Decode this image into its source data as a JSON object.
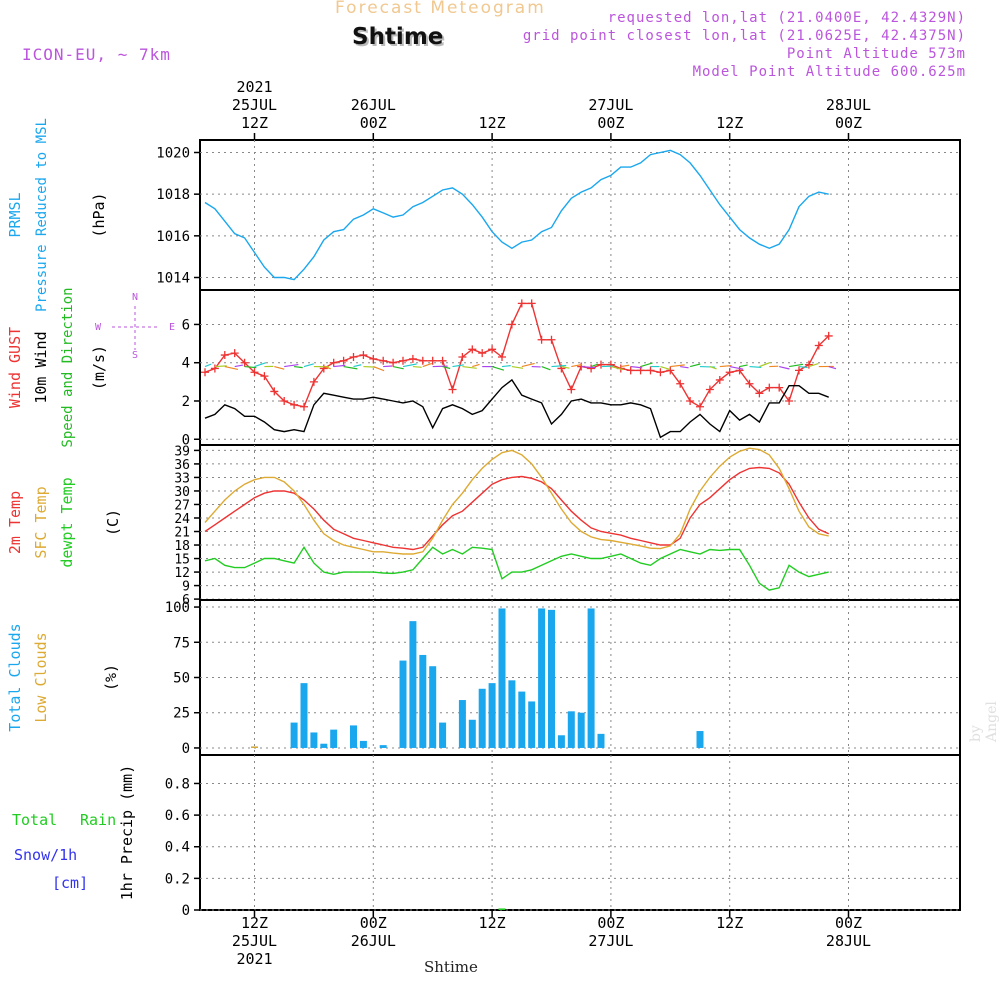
{
  "header": {
    "forecast_title": "Forecast Meteogram",
    "location_name": "Shtime",
    "model": "ICON-EU, ~ 7km",
    "requested": "requested lon,lat (21.0400E, 42.4329N)",
    "grid_point": "grid point closest lon,lat (21.0625E, 42.4375N)",
    "point_altitude": "Point Altitude 573m",
    "model_altitude": "Model Point Altitude 600.625m",
    "watermark": "by Angel",
    "x_axis_label": "Shtime"
  },
  "colors": {
    "pressure": "#1aa7ee",
    "gust": "#ee3333",
    "wind": "#000000",
    "direction": "#22bb22",
    "temp2m": "#ee3333",
    "sfc": "#ddaa33",
    "dewpt": "#22cc22",
    "clouds_total": "#1aa7ee",
    "clouds_low": "#ddaa33",
    "rain": "#22cc22",
    "snow": "#3333ee",
    "header_orange": "#f0c890",
    "header_purple": "#bb55dd"
  },
  "chart_data": {
    "type": "line",
    "time_start": "2021-07-25 07Z",
    "time_step_hours": 1,
    "time_count": 64,
    "top_axis": [
      {
        "label": [
          "2021",
          "25JUL",
          "12Z"
        ],
        "hour": 5
      },
      {
        "label": [
          "26JUL",
          "00Z"
        ],
        "hour": 17
      },
      {
        "label": [
          "12Z"
        ],
        "hour": 29
      },
      {
        "label": [
          "27JUL",
          "00Z"
        ],
        "hour": 41
      },
      {
        "label": [
          "12Z"
        ],
        "hour": 53
      },
      {
        "label": [
          "28JUL",
          "00Z"
        ],
        "hour": 65
      }
    ],
    "bottom_axis": [
      {
        "label": [
          "12Z",
          "25JUL",
          "2021"
        ],
        "hour": 5
      },
      {
        "label": [
          "00Z",
          "26JUL"
        ],
        "hour": 17
      },
      {
        "label": [
          "12Z"
        ],
        "hour": 29
      },
      {
        "label": [
          "00Z",
          "27JUL"
        ],
        "hour": 41
      },
      {
        "label": [
          "12Z"
        ],
        "hour": 53
      },
      {
        "label": [
          "00Z",
          "28JUL"
        ],
        "hour": 65
      }
    ],
    "panels": [
      {
        "id": "pressure",
        "type": "line",
        "ylim": [
          1013.4,
          1020.6
        ],
        "yticks": [
          1014,
          1016,
          1018,
          1020
        ],
        "ylabels": [
          {
            "text": "PRMSL",
            "color": "#1aa7ee"
          },
          {
            "text": "Pressure Reduced to MSL",
            "color": "#1aa7ee"
          },
          {
            "text": "(hPa)",
            "color": "#000000"
          }
        ],
        "series": [
          {
            "name": "PRMSL",
            "color": "#1aa7ee",
            "values": [
              1017.6,
              1017.3,
              1016.7,
              1016.1,
              1015.9,
              1015.2,
              1014.5,
              1014.0,
              1014.0,
              1013.9,
              1014.4,
              1015.0,
              1015.8,
              1016.2,
              1016.3,
              1016.8,
              1017.0,
              1017.3,
              1017.1,
              1016.9,
              1017.0,
              1017.4,
              1017.6,
              1017.9,
              1018.2,
              1018.3,
              1018.0,
              1017.5,
              1016.9,
              1016.2,
              1015.7,
              1015.4,
              1015.7,
              1015.8,
              1016.2,
              1016.4,
              1017.2,
              1017.8,
              1018.1,
              1018.3,
              1018.7,
              1018.9,
              1019.3,
              1019.3,
              1019.5,
              1019.9,
              1020.0,
              1020.1,
              1019.9,
              1019.5,
              1018.9,
              1018.2,
              1017.5,
              1016.9,
              1016.3,
              1015.9,
              1015.6,
              1015.4,
              1015.6,
              1016.3,
              1017.4,
              1017.9,
              1018.1,
              1018.0
            ]
          }
        ]
      },
      {
        "id": "wind",
        "type": "line",
        "ylim": [
          -0.3,
          7.8
        ],
        "yticks": [
          0,
          2,
          4,
          6
        ],
        "ylabels": [
          {
            "text": "Wind GUST",
            "color": "#ee3333"
          },
          {
            "text": "10m Wind",
            "color": "#000000"
          },
          {
            "text": "Speed and Direction",
            "color": "#22bb22"
          },
          {
            "text": "(m/s)",
            "color": "#000000"
          }
        ],
        "compass": {
          "n": "N",
          "s": "S",
          "w": "W",
          "e": "E"
        },
        "series": [
          {
            "name": "Wind GUST",
            "color": "#ee3333",
            "values": [
              3.5,
              3.7,
              4.4,
              4.5,
              4.0,
              3.5,
              3.3,
              2.5,
              2.0,
              1.8,
              1.7,
              3.0,
              3.7,
              4.0,
              4.1,
              4.3,
              4.4,
              4.2,
              4.1,
              4.0,
              4.1,
              4.2,
              4.1,
              4.1,
              4.1,
              2.6,
              4.3,
              4.7,
              4.5,
              4.7,
              4.3,
              6.0,
              7.1,
              7.1,
              5.2,
              5.2,
              3.7,
              2.6,
              3.8,
              3.7,
              3.9,
              3.9,
              3.7,
              3.6,
              3.6,
              3.6,
              3.5,
              3.6,
              2.9,
              2.0,
              1.7,
              2.6,
              3.1,
              3.5,
              3.6,
              2.9,
              2.4,
              2.7,
              2.7,
              2.0,
              3.6,
              3.9,
              4.9,
              5.4
            ]
          },
          {
            "name": "10m Wind",
            "color": "#000000",
            "values": [
              1.1,
              1.3,
              1.8,
              1.6,
              1.2,
              1.2,
              0.9,
              0.5,
              0.4,
              0.5,
              0.4,
              1.8,
              2.4,
              2.3,
              2.2,
              2.1,
              2.1,
              2.2,
              2.1,
              2.0,
              1.9,
              2.0,
              1.7,
              0.6,
              1.6,
              1.8,
              1.6,
              1.3,
              1.5,
              2.1,
              2.7,
              3.1,
              2.3,
              2.1,
              1.9,
              0.8,
              1.3,
              2.0,
              2.1,
              1.9,
              1.9,
              1.8,
              1.8,
              1.9,
              1.8,
              1.6,
              0.1,
              0.4,
              0.4,
              0.9,
              1.3,
              0.8,
              0.4,
              1.5,
              1.0,
              1.3,
              0.9,
              1.9,
              1.9,
              2.8,
              2.8,
              2.4,
              2.4,
              2.2
            ]
          }
        ]
      },
      {
        "id": "temp",
        "type": "line",
        "ylim": [
          5.8,
          40.2
        ],
        "yticks": [
          6,
          9,
          12,
          15,
          18,
          21,
          24,
          27,
          30,
          33,
          36,
          39
        ],
        "ylabels": [
          {
            "text": "2m Temp",
            "color": "#ee3333"
          },
          {
            "text": "SFC Temp",
            "color": "#ddaa33"
          },
          {
            "text": "dewpt Temp",
            "color": "#22cc22"
          },
          {
            "text": "(C)",
            "color": "#000000"
          }
        ],
        "series": [
          {
            "name": "2m Temp",
            "color": "#ee3333",
            "values": [
              21.0,
              22.5,
              24.0,
              25.5,
              27.0,
              28.5,
              29.5,
              30.0,
              30.0,
              29.5,
              28.0,
              26.0,
              23.5,
              21.5,
              20.5,
              19.5,
              19.0,
              18.5,
              18.0,
              17.5,
              17.3,
              17.0,
              17.5,
              20.0,
              22.5,
              24.5,
              25.5,
              27.5,
              29.5,
              31.5,
              32.5,
              33.0,
              33.2,
              32.8,
              32.0,
              30.5,
              28.0,
              25.5,
              23.5,
              21.8,
              21.0,
              20.6,
              20.2,
              19.5,
              19.0,
              18.5,
              18.0,
              18.0,
              19.5,
              24.0,
              27.0,
              28.5,
              30.5,
              32.5,
              34.0,
              35.0,
              35.2,
              35.0,
              34.0,
              31.5,
              27.5,
              24.0,
              21.5,
              20.5
            ]
          },
          {
            "name": "SFC Temp",
            "color": "#ddaa33",
            "values": [
              23.0,
              25.5,
              28.0,
              30.0,
              31.5,
              32.5,
              33.0,
              33.0,
              32.0,
              30.0,
              27.0,
              23.5,
              20.5,
              19.0,
              18.0,
              17.5,
              17.0,
              16.5,
              16.5,
              16.2,
              16.0,
              16.0,
              16.5,
              19.5,
              23.5,
              27.0,
              29.5,
              32.5,
              35.0,
              37.0,
              38.5,
              39.0,
              38.0,
              36.0,
              33.0,
              29.5,
              26.0,
              23.0,
              21.0,
              19.8,
              19.2,
              19.0,
              18.6,
              18.2,
              17.8,
              17.3,
              17.2,
              17.8,
              20.5,
              26.0,
              30.0,
              33.0,
              35.5,
              37.5,
              38.8,
              39.5,
              39.2,
              38.0,
              35.0,
              30.5,
              25.5,
              22.0,
              20.5,
              20.0
            ]
          },
          {
            "name": "dewpt Temp",
            "color": "#22cc22",
            "values": [
              14.5,
              15.0,
              13.5,
              13.0,
              13.0,
              14.0,
              15.0,
              15.0,
              14.5,
              14.0,
              17.5,
              14.0,
              12.0,
              11.5,
              12.0,
              12.0,
              12.0,
              12.0,
              11.8,
              11.7,
              12.0,
              12.5,
              15.0,
              17.5,
              16.0,
              17.0,
              16.0,
              17.5,
              17.3,
              17.0,
              10.5,
              12.0,
              12.0,
              12.5,
              13.5,
              14.5,
              15.5,
              16.0,
              15.5,
              15.0,
              15.0,
              15.5,
              16.0,
              15.0,
              14.0,
              13.5,
              15.0,
              16.0,
              17.0,
              16.5,
              16.0,
              17.0,
              16.8,
              17.0,
              17.0,
              13.5,
              9.5,
              8.0,
              8.5,
              13.5,
              12.0,
              11.0,
              11.5,
              12.0
            ]
          }
        ]
      },
      {
        "id": "clouds",
        "type": "bar",
        "ylim": [
          -5,
          105
        ],
        "yticks": [
          0,
          25,
          50,
          75,
          100
        ],
        "ylabels": [
          {
            "text": "Total Clouds",
            "color": "#1aa7ee"
          },
          {
            "text": "Low Clouds",
            "color": "#ddaa33"
          },
          {
            "text": "(%)",
            "color": "#000000"
          }
        ],
        "series": [
          {
            "name": "Total Clouds",
            "color": "#1aa7ee",
            "values": [
              0,
              0,
              0,
              0,
              0,
              1,
              0,
              0,
              0,
              18,
              46,
              11,
              3,
              13,
              0,
              16,
              5,
              0,
              2,
              0,
              62,
              90,
              66,
              58,
              18,
              0,
              34,
              20,
              42,
              46,
              99,
              48,
              40,
              33,
              99,
              98,
              9,
              26,
              25,
              99,
              10,
              0,
              0,
              0,
              0,
              0,
              0,
              0,
              0,
              0,
              12,
              0,
              0,
              0,
              0,
              0,
              0,
              0,
              0,
              0,
              0,
              0,
              0,
              0
            ]
          },
          {
            "name": "Low Clouds",
            "color": "#ddaa33",
            "values": [
              0,
              0,
              0,
              0,
              0,
              1,
              0,
              0,
              0,
              0,
              0,
              0,
              0,
              0,
              0,
              0,
              0,
              0,
              0,
              0,
              0,
              0,
              0,
              0,
              0,
              0,
              0,
              0,
              0,
              0,
              0,
              0,
              0,
              0,
              0,
              0,
              0,
              0,
              0,
              0,
              0,
              0,
              0,
              0,
              0,
              0,
              0,
              0,
              0,
              0,
              0,
              0,
              0,
              0,
              0,
              0,
              0,
              0,
              0,
              0,
              0,
              0,
              0,
              0
            ]
          }
        ]
      },
      {
        "id": "precip",
        "type": "bar",
        "ylim": [
          0,
          0.98
        ],
        "yticks": [
          0,
          0.2,
          0.4,
          0.6,
          0.8
        ],
        "yticklabels": [
          "0",
          "0.2",
          "0.4",
          "0.6",
          "0.8"
        ],
        "ylabels": [
          {
            "text": "1hr Precip (mm)",
            "color": "#000000"
          }
        ],
        "side_labels": {
          "total": "Total",
          "rain": "Rain",
          "snow": "Snow/1h",
          "cm": "[cm]"
        },
        "series": [
          {
            "name": "Total Rain",
            "color": "#22cc22",
            "values": [
              0,
              0,
              0,
              0,
              0,
              0,
              0,
              0,
              0,
              0,
              0,
              0,
              0,
              0,
              0,
              0,
              0,
              0,
              0,
              0,
              0,
              0,
              0,
              0,
              0,
              0,
              0,
              0,
              0,
              0,
              0.01,
              0,
              0,
              0,
              0,
              0,
              0,
              0,
              0,
              0,
              0,
              0,
              0,
              0,
              0,
              0,
              0,
              0,
              0,
              0,
              0,
              0,
              0,
              0,
              0,
              0,
              0,
              0,
              0,
              0,
              0,
              0,
              0,
              0
            ]
          }
        ]
      }
    ]
  }
}
